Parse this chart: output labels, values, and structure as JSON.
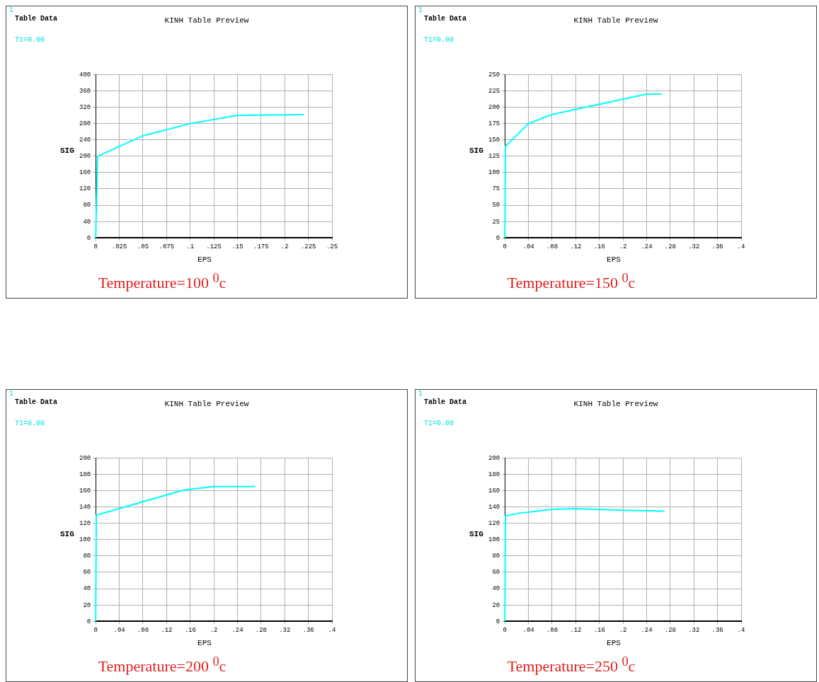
{
  "chart_data": [
    {
      "type": "line",
      "title": "KINH Table Preview",
      "xlabel": "EPS",
      "ylabel": "SIG",
      "annotations": [
        "1",
        "Table Data",
        "T1=0.00",
        "Temperature=100 $^{0}$c"
      ],
      "color": "#00ffff",
      "marker": "none",
      "grid": true,
      "legend": false,
      "x": [
        0,
        0.002,
        0.05,
        0.1,
        0.15,
        0.22
      ],
      "values": [
        0,
        200,
        250,
        280,
        300,
        302
      ],
      "xlim": [
        0,
        0.25
      ],
      "xticks": [
        {
          "value": 0,
          "label": "0"
        },
        {
          "value": 0.025,
          "label": ".025"
        },
        {
          "value": 0.05,
          "label": ".05"
        },
        {
          "value": 0.075,
          "label": ".075"
        },
        {
          "value": 0.1,
          "label": ".1"
        },
        {
          "value": 0.125,
          "label": ".125"
        },
        {
          "value": 0.15,
          "label": ".15"
        },
        {
          "value": 0.175,
          "label": ".175"
        },
        {
          "value": 0.2,
          "label": ".2"
        },
        {
          "value": 0.225,
          "label": ".225"
        },
        {
          "value": 0.25,
          "label": ".25"
        }
      ],
      "ylim": [
        0,
        400
      ],
      "yticks": [
        0,
        40,
        80,
        120,
        160,
        200,
        240,
        280,
        320,
        360,
        400
      ]
    },
    {
      "type": "line",
      "title": "KINH Table Preview",
      "xlabel": "EPS",
      "ylabel": "SIG",
      "annotations": [
        "1",
        "Table Data",
        "T1=0.00",
        "Temperature=150 $^{0}$c"
      ],
      "color": "#00ffff",
      "marker": "none",
      "grid": true,
      "legend": false,
      "x": [
        0,
        0.001,
        0.04,
        0.08,
        0.24,
        0.265
      ],
      "values": [
        0,
        140,
        175,
        189,
        220,
        220
      ],
      "xlim": [
        0,
        0.4
      ],
      "xticks": [
        {
          "value": 0,
          "label": "0"
        },
        {
          "value": 0.04,
          "label": ".04"
        },
        {
          "value": 0.08,
          "label": ".08"
        },
        {
          "value": 0.12,
          "label": ".12"
        },
        {
          "value": 0.16,
          "label": ".16"
        },
        {
          "value": 0.2,
          "label": ".2"
        },
        {
          "value": 0.24,
          "label": ".24"
        },
        {
          "value": 0.28,
          "label": ".28"
        },
        {
          "value": 0.32,
          "label": ".32"
        },
        {
          "value": 0.36,
          "label": ".36"
        },
        {
          "value": 0.4,
          "label": ".4"
        }
      ],
      "ylim": [
        0,
        250
      ],
      "yticks": [
        0,
        25,
        50,
        75,
        100,
        125,
        150,
        175,
        200,
        225,
        250
      ]
    },
    {
      "type": "line",
      "title": "KINH Table Preview",
      "xlabel": "EPS",
      "ylabel": "SIG",
      "annotations": [
        "1",
        "Table Data",
        "T1=0.00",
        "Temperature=200 $^{0}$c"
      ],
      "color": "#00ffff",
      "marker": "none",
      "grid": true,
      "legend": false,
      "x": [
        0,
        0.001,
        0.15,
        0.2,
        0.27
      ],
      "values": [
        0,
        130,
        161,
        165,
        165
      ],
      "xlim": [
        0,
        0.4
      ],
      "xticks": [
        {
          "value": 0,
          "label": "0"
        },
        {
          "value": 0.04,
          "label": ".04"
        },
        {
          "value": 0.08,
          "label": ".08"
        },
        {
          "value": 0.12,
          "label": ".12"
        },
        {
          "value": 0.16,
          "label": ".16"
        },
        {
          "value": 0.2,
          "label": ".2"
        },
        {
          "value": 0.24,
          "label": ".24"
        },
        {
          "value": 0.28,
          "label": ".28"
        },
        {
          "value": 0.32,
          "label": ".32"
        },
        {
          "value": 0.36,
          "label": ".36"
        },
        {
          "value": 0.4,
          "label": ".4"
        }
      ],
      "ylim": [
        0,
        200
      ],
      "yticks": [
        0,
        20,
        40,
        60,
        80,
        100,
        120,
        140,
        160,
        180,
        200
      ]
    },
    {
      "type": "line",
      "title": "KINH Table Preview",
      "xlabel": "EPS",
      "ylabel": "SIG",
      "annotations": [
        "1",
        "Table Data",
        "T1=0.00",
        "Temperature=250 $^{0}$c"
      ],
      "color": "#00ffff",
      "marker": "none",
      "grid": true,
      "legend": false,
      "x": [
        0,
        0.001,
        0.02,
        0.08,
        0.12,
        0.2,
        0.27
      ],
      "values": [
        0,
        129,
        132,
        137,
        138,
        136,
        135
      ],
      "xlim": [
        0,
        0.4
      ],
      "xticks": [
        {
          "value": 0,
          "label": "0"
        },
        {
          "value": 0.04,
          "label": ".04"
        },
        {
          "value": 0.08,
          "label": ".08"
        },
        {
          "value": 0.12,
          "label": ".12"
        },
        {
          "value": 0.16,
          "label": ".16"
        },
        {
          "value": 0.2,
          "label": ".2"
        },
        {
          "value": 0.24,
          "label": ".24"
        },
        {
          "value": 0.28,
          "label": ".28"
        },
        {
          "value": 0.32,
          "label": ".32"
        },
        {
          "value": 0.36,
          "label": ".36"
        },
        {
          "value": 0.4,
          "label": ".4"
        }
      ],
      "ylim": [
        0,
        200
      ],
      "yticks": [
        0,
        20,
        40,
        60,
        80,
        100,
        120,
        140,
        160,
        180,
        200
      ]
    }
  ]
}
